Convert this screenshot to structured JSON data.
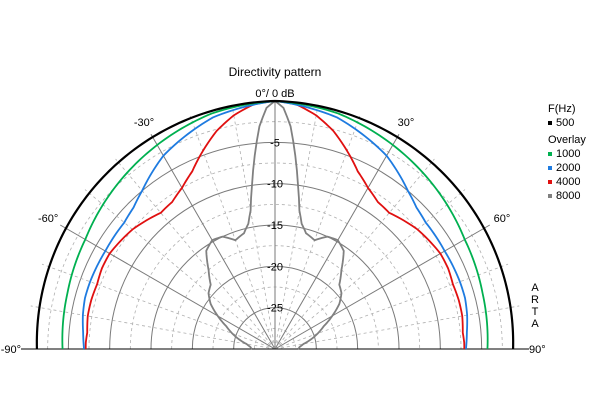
{
  "chart_data": {
    "type": "polar-line",
    "title": "Directivity pattern",
    "top_label": "0°/ 0 dB",
    "db_range": [
      -30,
      0
    ],
    "radial_ticks": [
      "-5",
      "-10",
      "-15",
      "-20",
      "-25"
    ],
    "radial_tick_values": [
      -5,
      -10,
      -15,
      -20,
      -25
    ],
    "angle_range": [
      -90,
      90
    ],
    "angle_labels": [
      {
        "angle": -90,
        "text": "-90°"
      },
      {
        "angle": -60,
        "text": "-60°"
      },
      {
        "angle": -30,
        "text": "-30°"
      },
      {
        "angle": 30,
        "text": "30°"
      },
      {
        "angle": 60,
        "text": "60°"
      },
      {
        "angle": 90,
        "text": "90°"
      }
    ],
    "legend": {
      "header": "F(Hz)",
      "main": {
        "label": "500",
        "color": "#000000"
      },
      "overlay_title": "Overlay",
      "overlays": [
        {
          "label": "1000",
          "color": "#00b050"
        },
        {
          "label": "2000",
          "color": "#1e7be0"
        },
        {
          "label": "4000",
          "color": "#e01010"
        },
        {
          "label": "8000",
          "color": "#808080"
        }
      ]
    },
    "series": [
      {
        "name": "500",
        "color": "#000000",
        "angles": [
          0,
          15,
          30,
          45,
          60,
          75,
          90
        ],
        "db": [
          0,
          -0.2,
          -0.4,
          -0.6,
          -0.8,
          -1.0,
          -1.2
        ]
      },
      {
        "name": "1000",
        "color": "#00b050",
        "angles": [
          0,
          15,
          30,
          45,
          60,
          75,
          90
        ],
        "db": [
          0,
          -0.5,
          -1.5,
          -2.5,
          -3.5,
          -4.0,
          -4.3
        ]
      },
      {
        "name": "2000",
        "color": "#1e7be0",
        "angles": [
          0,
          15,
          30,
          40,
          45,
          50,
          60,
          70,
          75,
          80,
          85,
          90
        ],
        "db": [
          0,
          -1.0,
          -3.0,
          -5.0,
          -5.8,
          -6.2,
          -6.3,
          -6.2,
          -6.2,
          -6.4,
          -6.7,
          -6.9
        ]
      },
      {
        "name": "4000",
        "color": "#e01010",
        "angles": [
          0,
          5,
          10,
          15,
          20,
          25,
          30,
          35,
          40,
          45,
          50,
          55,
          60,
          65,
          70,
          75,
          80,
          85,
          88,
          90
        ],
        "db": [
          0,
          -0.3,
          -1.3,
          -2.7,
          -4.5,
          -6.3,
          -7.5,
          -8.3,
          -8.5,
          -8.0,
          -7.5,
          -7.2,
          -6.9,
          -6.9,
          -7.1,
          -7.0,
          -7.0,
          -7.2,
          -7.1,
          -7.1
        ]
      },
      {
        "name": "8000",
        "color": "#808080",
        "angles": [
          0,
          2,
          4,
          6,
          8,
          10,
          12,
          15,
          20,
          25,
          30,
          35,
          40,
          45,
          50,
          55,
          60,
          65,
          70,
          75,
          80,
          85,
          90
        ],
        "db": [
          0,
          -0.8,
          -3.0,
          -6.5,
          -10.0,
          -13.0,
          -14.5,
          -15.5,
          -16.0,
          -15.0,
          -14.8,
          -15.5,
          -17.5,
          -19.0,
          -19.5,
          -20.5,
          -22.0,
          -23.5,
          -24.5,
          -25.5,
          -26.5,
          -27.0,
          -27.2
        ]
      }
    ]
  }
}
